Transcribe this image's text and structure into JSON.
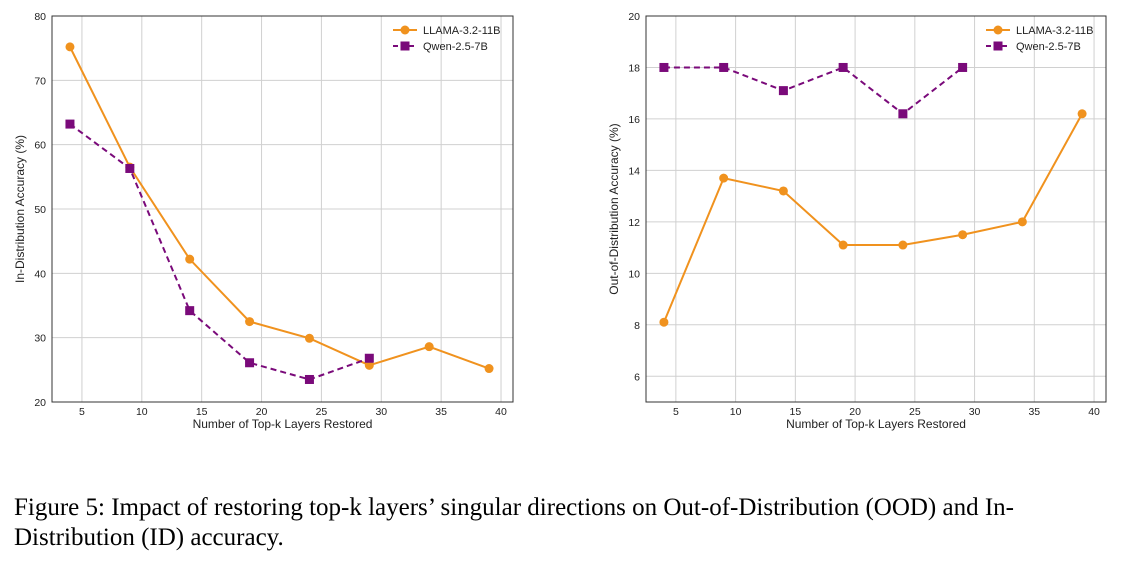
{
  "chart_data": [
    {
      "type": "line",
      "title": "",
      "xlabel": "Number of Top-k Layers Restored",
      "ylabel": "In-Distribution Accuracy (%)",
      "xlim": [
        2.5,
        41
      ],
      "ylim": [
        20,
        80
      ],
      "xticks": [
        5,
        10,
        15,
        20,
        25,
        30,
        35,
        40
      ],
      "yticks": [
        20,
        30,
        40,
        50,
        60,
        70,
        80
      ],
      "grid": true,
      "legend_position": "top-right",
      "series": [
        {
          "name": "LLAMA-3.2-11B",
          "color": "#f0921e",
          "style": "solid",
          "marker": "circle",
          "x": [
            4,
            9,
            14,
            19,
            24,
            29,
            34,
            39
          ],
          "y": [
            75.2,
            56.5,
            42.2,
            32.5,
            29.9,
            25.7,
            28.6,
            25.2
          ]
        },
        {
          "name": "Qwen-2.5-7B",
          "color": "#7a0a7a",
          "style": "dashed",
          "marker": "square",
          "x": [
            4,
            9,
            14,
            19,
            24,
            29
          ],
          "y": [
            63.2,
            56.3,
            34.2,
            26.1,
            23.5,
            26.8
          ]
        }
      ]
    },
    {
      "type": "line",
      "title": "",
      "xlabel": "Number of Top-k Layers Restored",
      "ylabel": "Out-of-Distribution Accuracy (%)",
      "xlim": [
        2.5,
        41
      ],
      "ylim": [
        5,
        20
      ],
      "xticks": [
        5,
        10,
        15,
        20,
        25,
        30,
        35,
        40
      ],
      "yticks": [
        6,
        8,
        10,
        12,
        14,
        16,
        18,
        20
      ],
      "grid": true,
      "legend_position": "top-right",
      "series": [
        {
          "name": "LLAMA-3.2-11B",
          "color": "#f0921e",
          "style": "solid",
          "marker": "circle",
          "x": [
            4,
            9,
            14,
            19,
            24,
            29,
            34,
            39
          ],
          "y": [
            8.1,
            13.7,
            13.2,
            11.1,
            11.1,
            11.5,
            12.0,
            16.2
          ]
        },
        {
          "name": "Qwen-2.5-7B",
          "color": "#7a0a7a",
          "style": "dashed",
          "marker": "square",
          "x": [
            4,
            9,
            14,
            19,
            24,
            29
          ],
          "y": [
            18.0,
            18.0,
            17.1,
            18.0,
            16.2,
            18.0
          ]
        }
      ]
    }
  ],
  "caption": "Figure 5: Impact of restoring top-k layers’ singular directions on Out-of-Distribution (OOD) and In-Distribution (ID) accuracy."
}
